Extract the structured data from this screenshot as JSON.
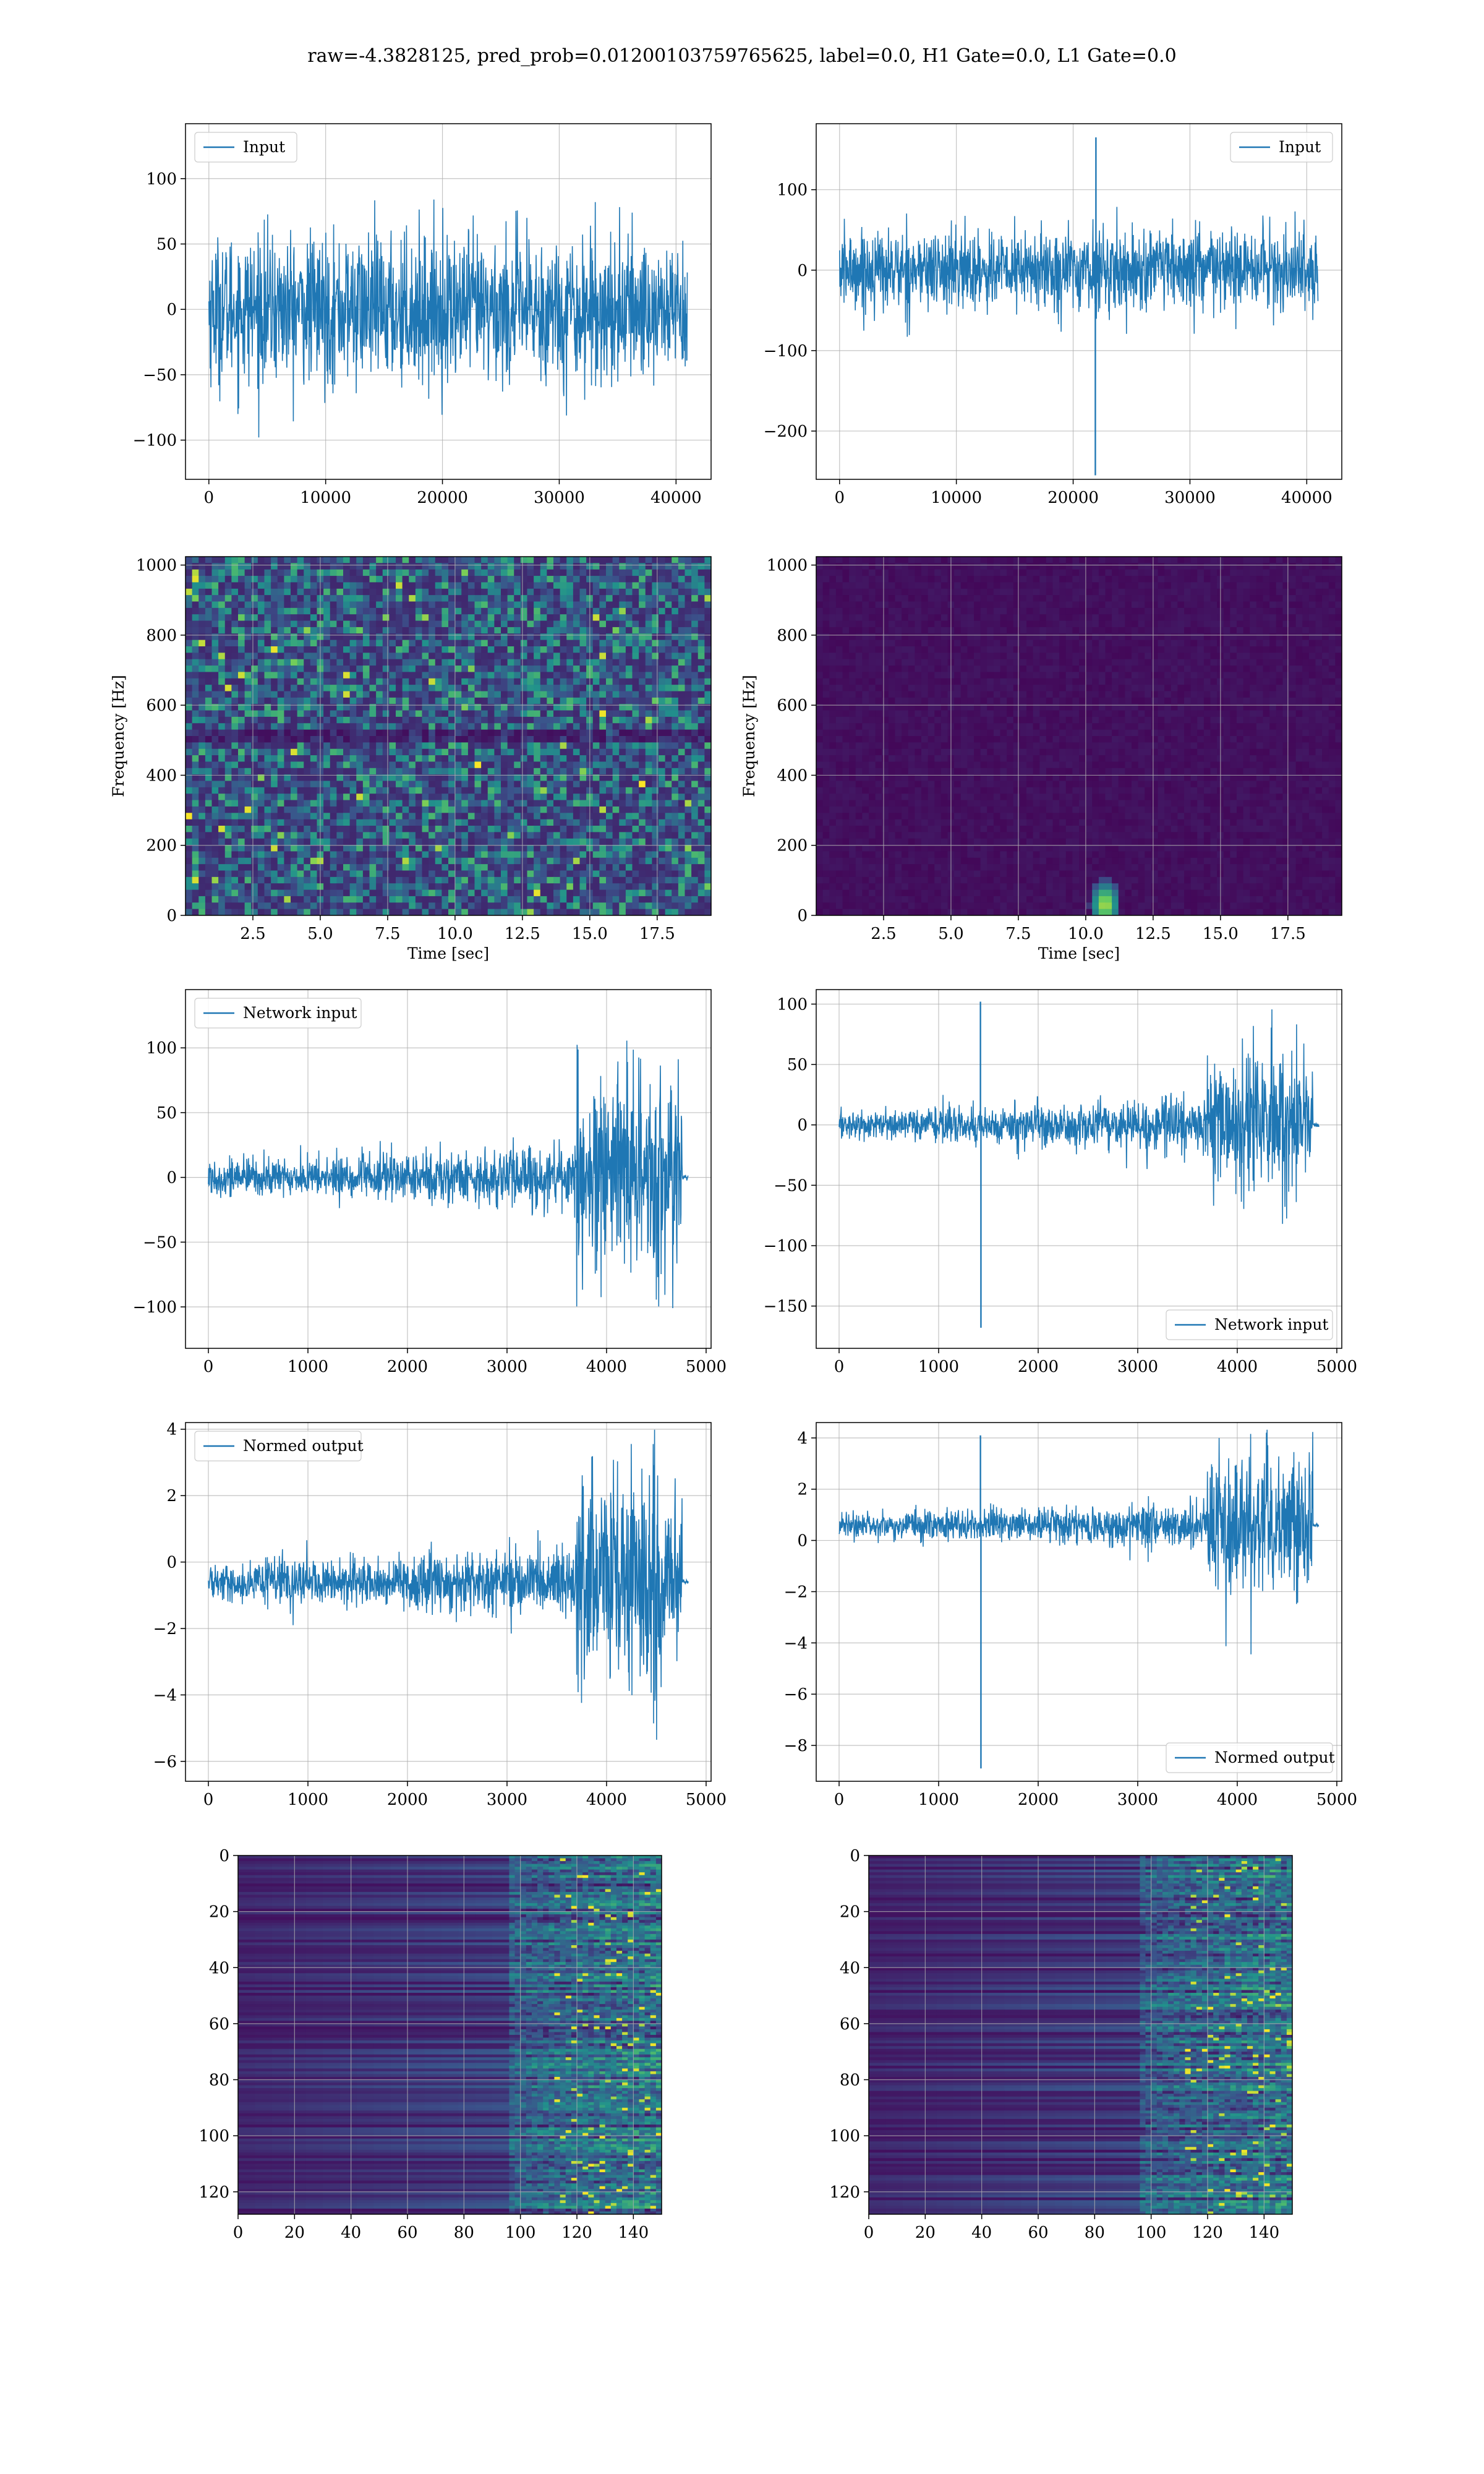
{
  "figure": {
    "suptitle": "raw=-4.3828125, pred_prob=0.01200103759765625, label=0.0, H1 Gate=0.0, L1 Gate=0.0"
  },
  "colors": {
    "line": "#1f77b4",
    "viridis_low": "#440154",
    "viridis_mid": "#21918c",
    "viridis_high": "#fde725",
    "grid": "#b0b0b0"
  },
  "chart_data": [
    {
      "id": "r1c1",
      "type": "line",
      "legend": "Input",
      "legend_loc": "upper left",
      "xlim": [
        -2000,
        43000
      ],
      "ylim": [
        -130,
        142
      ],
      "xticks": [
        0,
        10000,
        20000,
        30000,
        40000
      ],
      "yticks": [
        -100,
        -50,
        0,
        50,
        100
      ],
      "ytick_labels": [
        "−100",
        "−50",
        "0",
        "50",
        "100"
      ],
      "x_range": [
        0,
        40960
      ],
      "signal": {
        "kind": "noise",
        "std": 28,
        "segments": [
          [
            0,
            1,
            1
          ]
        ]
      },
      "spikes": []
    },
    {
      "id": "r1c2",
      "type": "line",
      "legend": "Input",
      "legend_loc": "upper right",
      "xlim": [
        -2000,
        43000
      ],
      "ylim": [
        -260,
        182
      ],
      "xticks": [
        0,
        10000,
        20000,
        30000,
        40000
      ],
      "yticks": [
        -200,
        -100,
        0,
        100
      ],
      "ytick_labels": [
        "−200",
        "−100",
        "0",
        "100"
      ],
      "x_range": [
        0,
        40960
      ],
      "signal": {
        "kind": "noise",
        "std": 25,
        "segments": [
          [
            0,
            1,
            1
          ]
        ]
      },
      "spikes": [
        {
          "x": 21900,
          "y": -255
        },
        {
          "x": 21950,
          "y": 165
        }
      ]
    },
    {
      "id": "r2c1",
      "type": "heatmap",
      "style": "spectrogram_noisy",
      "xlabel": "Time [sec]",
      "ylabel": "Frequency [Hz]",
      "xlim": [
        0,
        19.5
      ],
      "ylim": [
        0,
        1024
      ],
      "xticks": [
        2.5,
        5.0,
        7.5,
        10.0,
        12.5,
        15.0,
        17.5
      ],
      "xtick_labels": [
        "2.5",
        "5.0",
        "7.5",
        "10.0",
        "12.5",
        "15.0",
        "17.5"
      ],
      "yticks": [
        0,
        200,
        400,
        600,
        800,
        1000
      ]
    },
    {
      "id": "r2c2",
      "type": "heatmap",
      "style": "spectrogram_dark",
      "xlabel": "Time [sec]",
      "ylabel": "Frequency [Hz]",
      "xlim": [
        0,
        19.5
      ],
      "ylim": [
        0,
        1024
      ],
      "xticks": [
        2.5,
        5.0,
        7.5,
        10.0,
        12.5,
        15.0,
        17.5
      ],
      "xtick_labels": [
        "2.5",
        "5.0",
        "7.5",
        "10.0",
        "12.5",
        "15.0",
        "17.5"
      ],
      "yticks": [
        0,
        200,
        400,
        600,
        800,
        1000
      ],
      "hotspot": {
        "t": 10.6,
        "f": 40
      }
    },
    {
      "id": "r3c1",
      "type": "line",
      "legend": "Network input",
      "legend_loc": "upper left",
      "xlim": [
        -230,
        5050
      ],
      "ylim": [
        -132,
        145
      ],
      "xticks": [
        0,
        1000,
        2000,
        3000,
        4000,
        5000
      ],
      "yticks": [
        -100,
        -50,
        0,
        50,
        100
      ],
      "ytick_labels": [
        "−100",
        "−50",
        "0",
        "50",
        "100"
      ],
      "x_range": [
        0,
        4820
      ],
      "signal": {
        "kind": "chirp",
        "base": 0,
        "std": 7,
        "ramp_to": 13,
        "burst_start": 3700,
        "burst_end": 4760,
        "burst_std": 40
      },
      "spikes": []
    },
    {
      "id": "r3c2",
      "type": "line",
      "legend": "Network input",
      "legend_loc": "lower right",
      "xlim": [
        -230,
        5050
      ],
      "ylim": [
        -185,
        112
      ],
      "xticks": [
        0,
        1000,
        2000,
        3000,
        4000,
        5000
      ],
      "yticks": [
        -150,
        -100,
        -50,
        0,
        50,
        100
      ],
      "ytick_labels": [
        "−150",
        "−100",
        "−50",
        "0",
        "50",
        "100"
      ],
      "x_range": [
        0,
        4820
      ],
      "signal": {
        "kind": "chirp",
        "base": 0,
        "std": 6,
        "ramp_to": 12,
        "burst_start": 3700,
        "burst_end": 4760,
        "burst_std": 30
      },
      "spikes": [
        {
          "x": 1420,
          "y": 102
        },
        {
          "x": 1425,
          "y": -168
        }
      ]
    },
    {
      "id": "r4c1",
      "type": "line",
      "legend": "Normed output",
      "legend_loc": "upper left",
      "xlim": [
        -230,
        5050
      ],
      "ylim": [
        -6.6,
        4.2
      ],
      "xticks": [
        0,
        1000,
        2000,
        3000,
        4000,
        5000
      ],
      "yticks": [
        -6,
        -4,
        -2,
        0,
        2,
        4
      ],
      "ytick_labels": [
        "−6",
        "−4",
        "−2",
        "0",
        "2",
        "4"
      ],
      "x_range": [
        0,
        4820
      ],
      "signal": {
        "kind": "chirp",
        "base": -0.6,
        "std": 0.28,
        "ramp_to": 0.55,
        "burst_start": 3700,
        "burst_end": 4760,
        "burst_std": 1.7
      },
      "spikes": []
    },
    {
      "id": "r4c2",
      "type": "line",
      "legend": "Normed output",
      "legend_loc": "lower right",
      "xlim": [
        -230,
        5050
      ],
      "ylim": [
        -9.4,
        4.6
      ],
      "xticks": [
        0,
        1000,
        2000,
        3000,
        4000,
        5000
      ],
      "yticks": [
        -8,
        -6,
        -4,
        -2,
        0,
        2,
        4
      ],
      "ytick_labels": [
        "−8",
        "−6",
        "−4",
        "−2",
        "0",
        "2",
        "4"
      ],
      "x_range": [
        0,
        4820
      ],
      "signal": {
        "kind": "chirp",
        "base": 0.6,
        "std": 0.25,
        "ramp_to": 0.5,
        "burst_start": 3700,
        "burst_end": 4760,
        "burst_std": 1.45
      },
      "spikes": [
        {
          "x": 1420,
          "y": 4.1
        },
        {
          "x": 1425,
          "y": -8.9
        }
      ]
    },
    {
      "id": "r5c1",
      "type": "heatmap",
      "style": "feature_map",
      "xlim": [
        0,
        150
      ],
      "ylim": [
        128,
        0
      ],
      "xticks": [
        0,
        20,
        40,
        60,
        80,
        100,
        120,
        140
      ],
      "yticks": [
        0,
        20,
        40,
        60,
        80,
        100,
        120
      ]
    },
    {
      "id": "r5c2",
      "type": "heatmap",
      "style": "feature_map",
      "xlim": [
        0,
        150
      ],
      "ylim": [
        128,
        0
      ],
      "xticks": [
        0,
        20,
        40,
        60,
        80,
        100,
        120,
        140
      ],
      "yticks": [
        0,
        20,
        40,
        60,
        80,
        100,
        120
      ],
      "glitch_col": 40
    }
  ]
}
